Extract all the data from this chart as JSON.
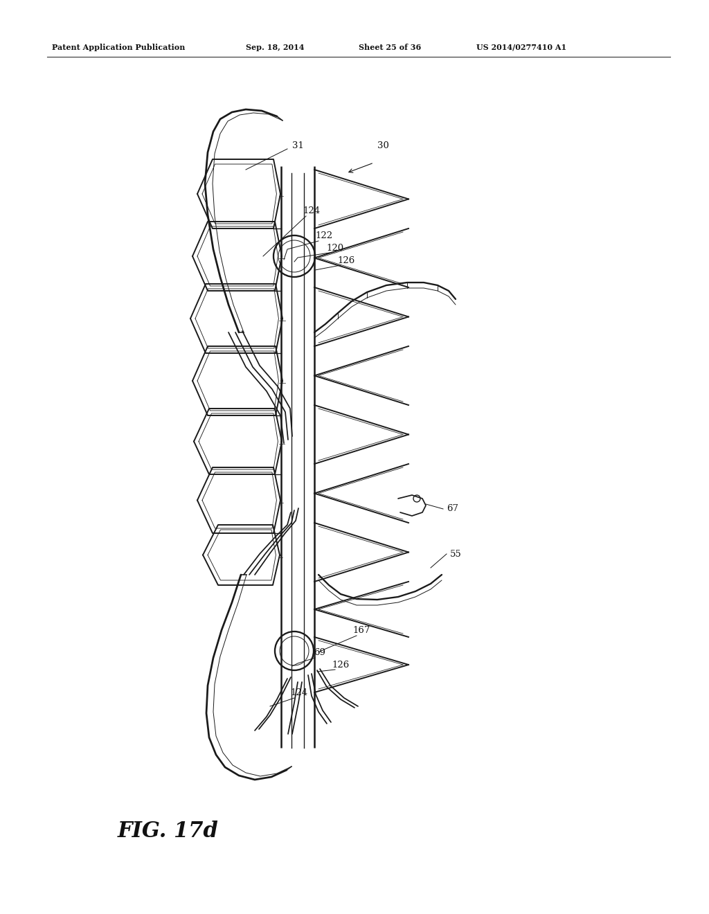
{
  "bg_color": "#ffffff",
  "line_color": "#1a1a1a",
  "lw": 1.4,
  "header_text": "Patent Application Publication",
  "header_date": "Sep. 18, 2014",
  "header_sheet": "Sheet 25 of 36",
  "header_patent": "US 2014/0277410 A1",
  "fig_label": "FIG. 17d",
  "figsize": [
    10.24,
    13.2
  ],
  "dpi": 100
}
